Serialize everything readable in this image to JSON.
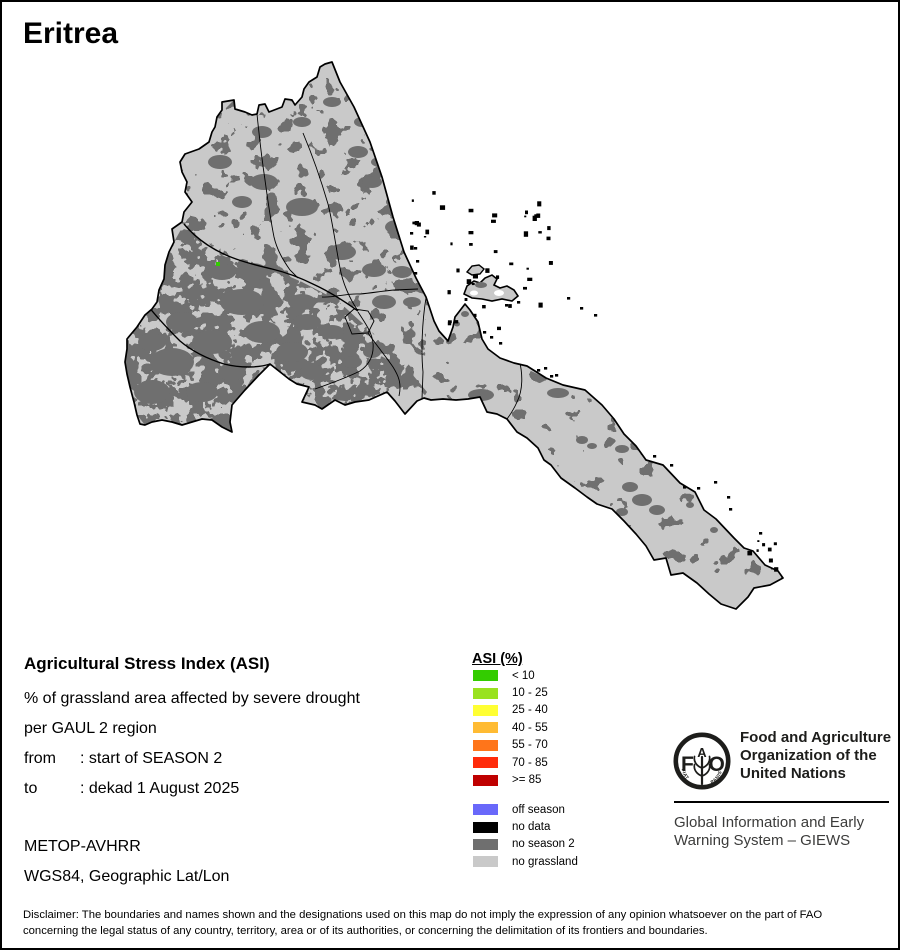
{
  "title": "Eritrea",
  "map": {
    "name": "Eritrea ASI map",
    "colors": {
      "land": "#C9C9C9",
      "patches": "#6F6F6F",
      "water": "#FFFFFF",
      "boundary": "#000000",
      "island": "#000000",
      "asi_speck": "#33CC00"
    }
  },
  "info": {
    "heading": "Agricultural Stress Index (ASI)",
    "line1": "% of grassland area affected by severe drought",
    "line2": "per GAUL 2 region",
    "from_label": "from",
    "from_value": ": start of SEASON 2",
    "to_label": "to",
    "to_value": ": dekad 1 August 2025",
    "sensor": "METOP-AVHRR",
    "projection": "WGS84, Geographic Lat/Lon"
  },
  "legend": {
    "title": "ASI (%)",
    "classes": [
      {
        "label": "< 10",
        "color": "#33CC00"
      },
      {
        "label": "10 - 25",
        "color": "#99E21F"
      },
      {
        "label": "25 - 40",
        "color": "#FFFF33"
      },
      {
        "label": "40 - 55",
        "color": "#FFBB33"
      },
      {
        "label": "55 - 70",
        "color": "#FF751A"
      },
      {
        "label": "70 - 85",
        "color": "#FF2B0A"
      },
      {
        "label": ">= 85",
        "color": "#BF0000"
      }
    ],
    "extra": [
      {
        "label": "off season",
        "color": "#6968FA"
      },
      {
        "label": "no data",
        "color": "#000000"
      },
      {
        "label": "no season 2",
        "color": "#6F6F6F"
      },
      {
        "label": "no grassland",
        "color": "#C9C9C9"
      }
    ]
  },
  "fao": {
    "org_lines": [
      "Food and Agriculture",
      "Organization of the",
      "United Nations"
    ],
    "giews_lines": [
      "Global Information and Early",
      "Warning System – GIEWS"
    ],
    "logo": {
      "f": "F",
      "a": "A",
      "o": "O",
      "motto1": "FIAT",
      "motto2": "PANIS"
    }
  },
  "disclaimer": {
    "line1": "Disclaimer: The boundaries and names shown and the designations used on this map do not imply the expression of any opinion whatsoever on the part of FAO",
    "line2": "concerning the legal status of any country, territory, area or of its authorities, or concerning the delimitation of its frontiers and boundaries."
  }
}
